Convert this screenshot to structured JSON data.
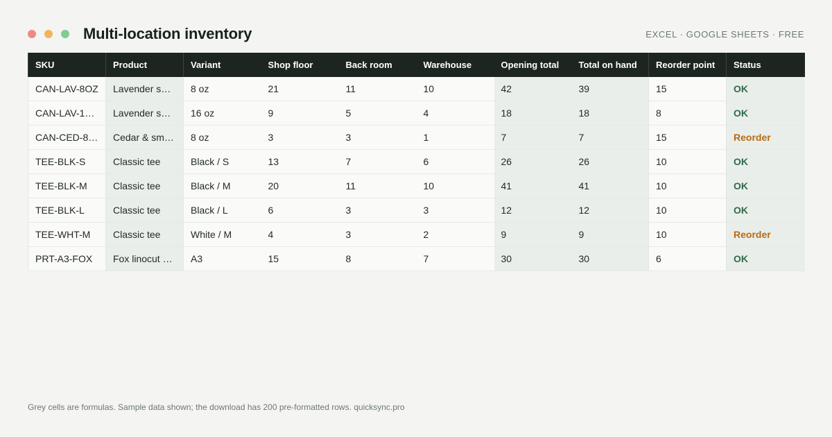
{
  "window_controls": {
    "close_color": "#ee8a86",
    "minimize_color": "#f1b45c",
    "maximize_color": "#7fcc94"
  },
  "header": {
    "title": "Multi-location inventory",
    "tagline": "EXCEL · GOOGLE SHEETS · FREE"
  },
  "colors": {
    "status_ok": "#2f6b4a",
    "status_reorder": "#b86a12",
    "header_bg": "#1c2520",
    "formula_cell_bg": "#eaeeeb"
  },
  "table": {
    "columns": [
      "SKU",
      "Product",
      "Variant",
      "Shop floor",
      "Back room",
      "Warehouse",
      "Opening total",
      "Total on hand",
      "Reorder point",
      "Status"
    ],
    "rows": [
      [
        "CAN-LAV-8OZ",
        "Lavender so…",
        "8 oz",
        "21",
        "11",
        "10",
        "42",
        "39",
        "15",
        "OK"
      ],
      [
        "CAN-LAV-1…",
        "Lavender so…",
        "16 oz",
        "9",
        "5",
        "4",
        "18",
        "18",
        "8",
        "OK"
      ],
      [
        "CAN-CED-8…",
        "Cedar & sm…",
        "8 oz",
        "3",
        "3",
        "1",
        "7",
        "7",
        "15",
        "Reorder"
      ],
      [
        "TEE-BLK-S",
        "Classic tee",
        "Black / S",
        "13",
        "7",
        "6",
        "26",
        "26",
        "10",
        "OK"
      ],
      [
        "TEE-BLK-M",
        "Classic tee",
        "Black / M",
        "20",
        "11",
        "10",
        "41",
        "41",
        "10",
        "OK"
      ],
      [
        "TEE-BLK-L",
        "Classic tee",
        "Black / L",
        "6",
        "3",
        "3",
        "12",
        "12",
        "10",
        "OK"
      ],
      [
        "TEE-WHT-M",
        "Classic tee",
        "White / M",
        "4",
        "3",
        "2",
        "9",
        "9",
        "10",
        "Reorder"
      ],
      [
        "PRT-A3-FOX",
        "Fox linocut …",
        "A3",
        "15",
        "8",
        "7",
        "30",
        "30",
        "6",
        "OK"
      ]
    ]
  },
  "footer": {
    "note": "Grey cells are formulas. Sample data shown; the download has 200 pre-formatted rows. quicksync.pro"
  }
}
